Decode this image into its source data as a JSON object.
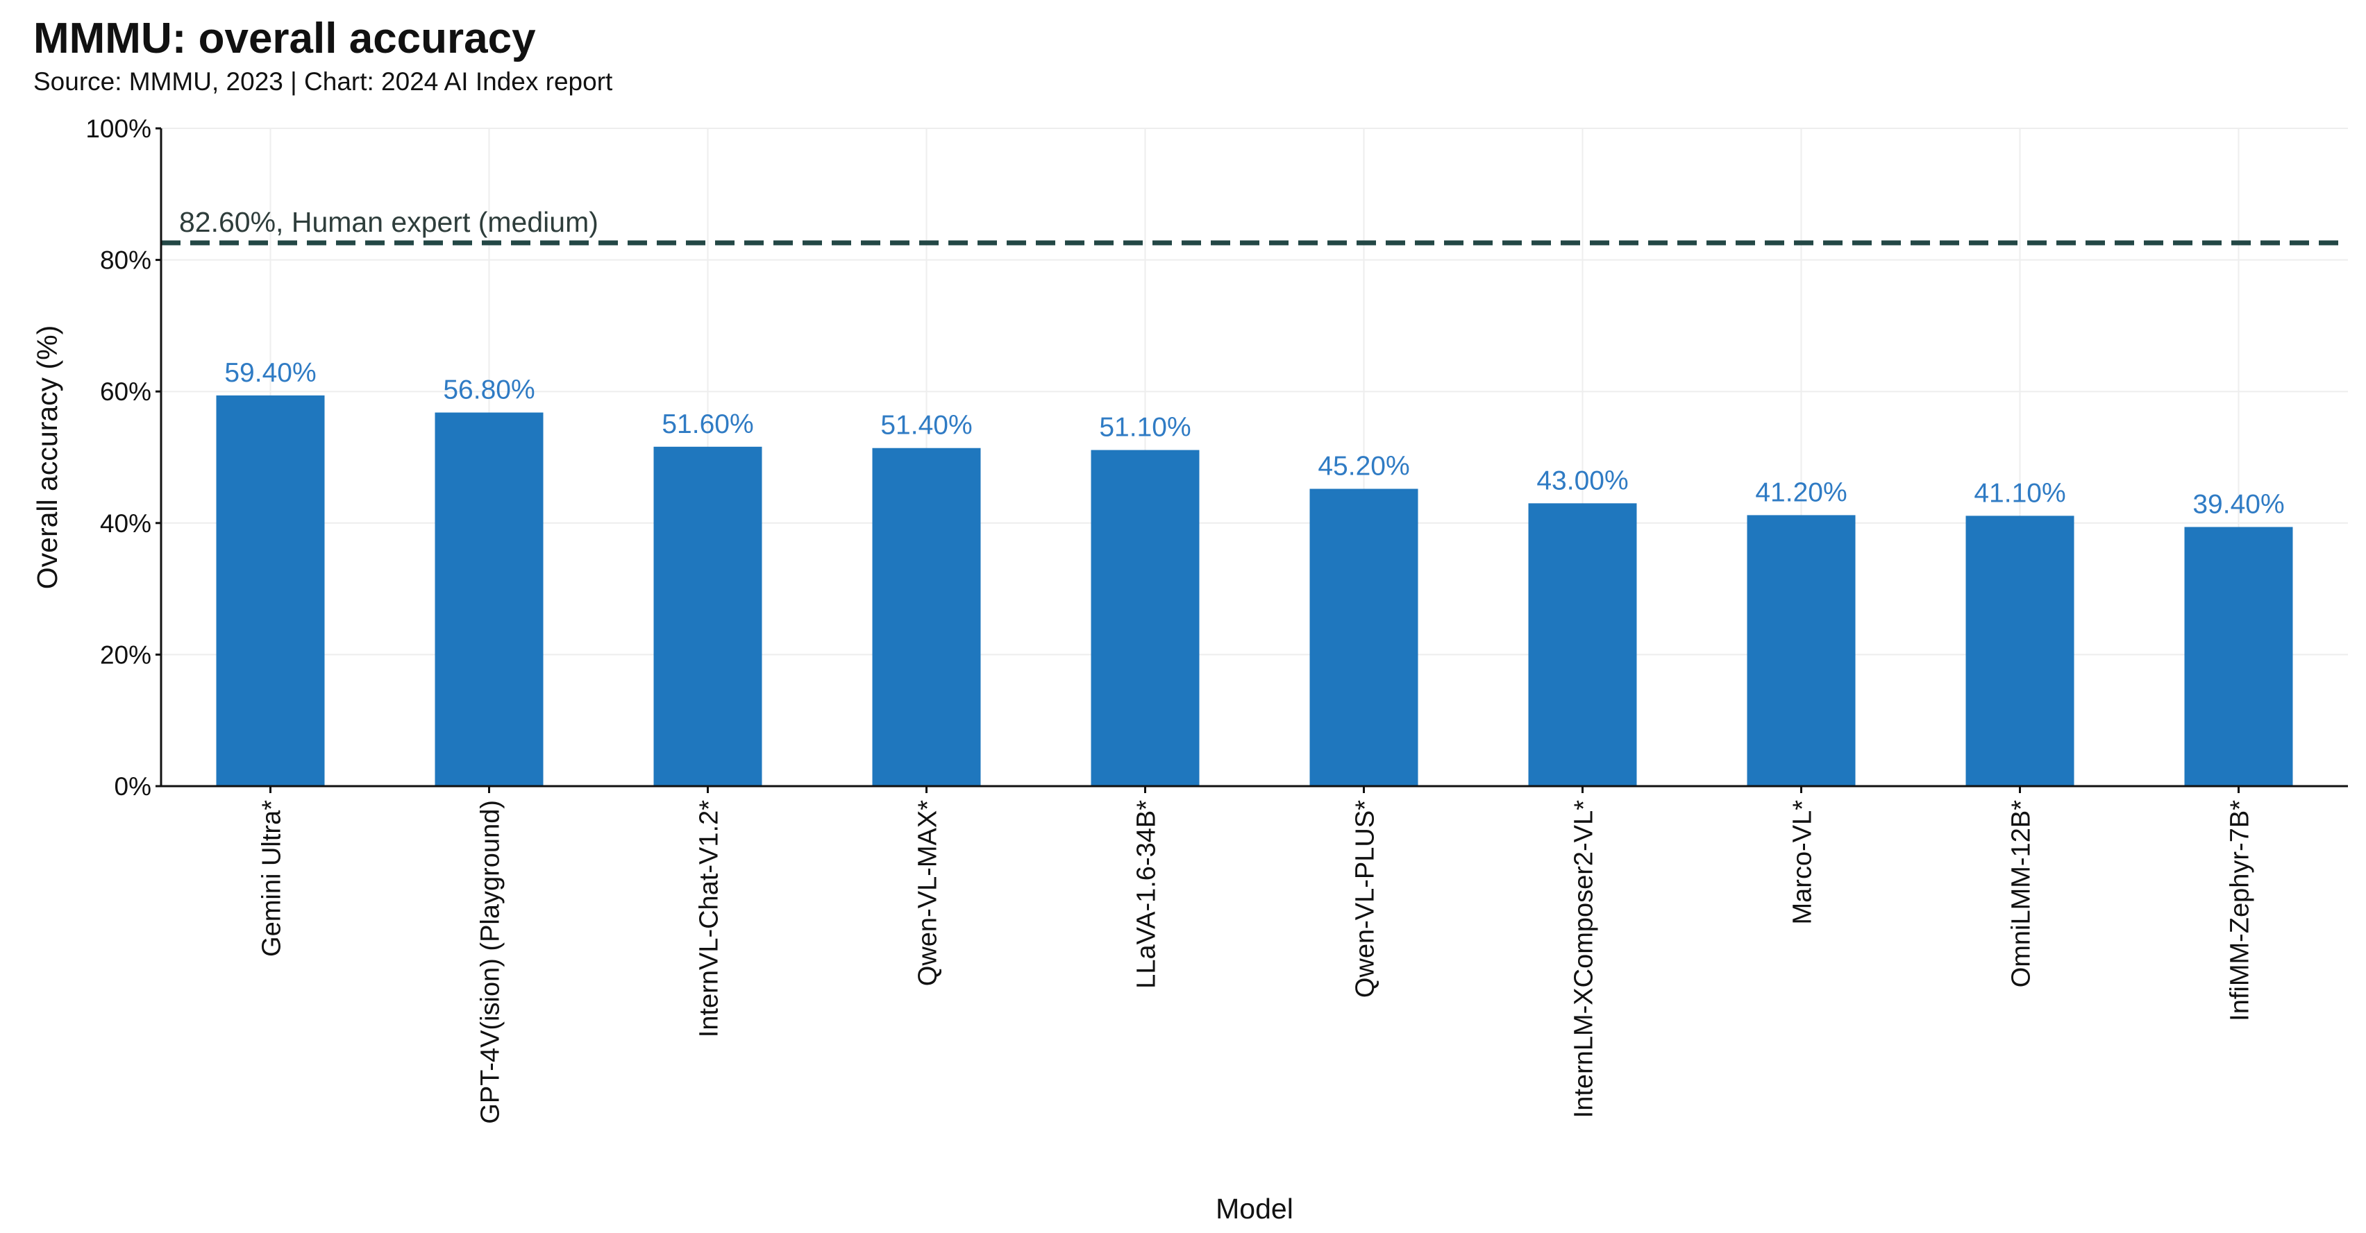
{
  "chart_data": {
    "type": "bar",
    "title": "MMMU: overall accuracy",
    "subtitle": "Source: MMMU, 2023 | Chart: 2024 AI Index report",
    "xlabel": "Model",
    "ylabel": "Overall accuracy (%)",
    "ylim": [
      0,
      100
    ],
    "yticks": [
      0,
      20,
      40,
      60,
      80,
      100
    ],
    "ytick_labels": [
      "0%",
      "20%",
      "40%",
      "60%",
      "80%",
      "100%"
    ],
    "grid": true,
    "categories": [
      "Gemini Ultra*",
      "GPT-4V(ision) (Playground)",
      "InternVL-Chat-V1.2*",
      "Qwen-VL-MAX*",
      "LLaVA-1.6-34B*",
      "Qwen-VL-PLUS*",
      "InternLM-XComposer2-VL*",
      "Marco-VL*",
      "OmniLMM-12B*",
      "InfiMM-Zephyr-7B*"
    ],
    "values": [
      59.4,
      56.8,
      51.6,
      51.4,
      51.1,
      45.2,
      43.0,
      41.2,
      41.1,
      39.4
    ],
    "value_labels": [
      "59.40%",
      "56.80%",
      "51.60%",
      "51.40%",
      "51.10%",
      "45.20%",
      "43.00%",
      "41.20%",
      "41.10%",
      "39.40%"
    ],
    "reference_line": {
      "value": 82.6,
      "label": "82.60%, Human expert (medium)",
      "style": "dashed"
    },
    "colors": {
      "bar": "#1f77be",
      "data_label": "#2f7bc4",
      "reference_line": "#234745",
      "grid": "#eeeeee",
      "axis": "#111111"
    }
  }
}
